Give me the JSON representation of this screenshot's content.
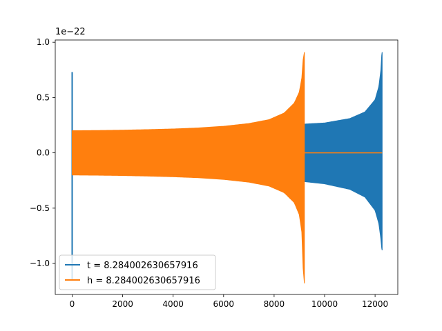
{
  "chart_data": {
    "type": "line",
    "title": "",
    "xlabel": "",
    "ylabel": "",
    "y_offset_label": "1e−22",
    "xlim": [
      -670,
      12900
    ],
    "ylim": [
      -1.28,
      1.02
    ],
    "x_ticks": [
      0,
      2000,
      4000,
      6000,
      8000,
      10000,
      12000
    ],
    "x_tick_labels": [
      "0",
      "2000",
      "4000",
      "6000",
      "8000",
      "10000",
      "12000"
    ],
    "y_ticks": [
      1.0,
      0.5,
      0.0,
      -0.5,
      -1.0
    ],
    "y_tick_labels": [
      "1.0",
      "0.5",
      "0.0",
      "−0.5",
      "−1.0"
    ],
    "grid": false,
    "legend_position": "lower-left",
    "series": [
      {
        "name": "t = 8.284002630657916",
        "color": "#1f77b4",
        "spike": {
          "x": 0,
          "max": 0.73,
          "min": -1.15
        },
        "envelope": {
          "x_start": 9200,
          "x_end": 12280,
          "upper": [
            [
              9200,
              0.26
            ],
            [
              10000,
              0.27
            ],
            [
              11000,
              0.31
            ],
            [
              11600,
              0.37
            ],
            [
              12000,
              0.48
            ],
            [
              12150,
              0.6
            ],
            [
              12230,
              0.75
            ],
            [
              12270,
              0.91
            ]
          ],
          "lower": [
            [
              9200,
              -0.26
            ],
            [
              10000,
              -0.28
            ],
            [
              11000,
              -0.33
            ],
            [
              11600,
              -0.4
            ],
            [
              12000,
              -0.52
            ],
            [
              12150,
              -0.64
            ],
            [
              12230,
              -0.78
            ],
            [
              12270,
              -0.88
            ]
          ]
        },
        "tail": {
          "x_start": 9200,
          "x_end": 12280,
          "value": 0.0
        }
      },
      {
        "name": "h = 8.284002630657916",
        "color": "#ff7f0e",
        "envelope": {
          "x_start": 0,
          "x_end": 9200,
          "upper": [
            [
              0,
              0.2
            ],
            [
              1000,
              0.202
            ],
            [
              2000,
              0.205
            ],
            [
              3000,
              0.21
            ],
            [
              4000,
              0.216
            ],
            [
              5000,
              0.225
            ],
            [
              6000,
              0.24
            ],
            [
              7000,
              0.265
            ],
            [
              7800,
              0.3
            ],
            [
              8400,
              0.36
            ],
            [
              8800,
              0.45
            ],
            [
              9000,
              0.55
            ],
            [
              9100,
              0.68
            ],
            [
              9170,
              0.91
            ]
          ],
          "lower": [
            [
              0,
              -0.2
            ],
            [
              1000,
              -0.202
            ],
            [
              2000,
              -0.205
            ],
            [
              3000,
              -0.21
            ],
            [
              4000,
              -0.216
            ],
            [
              5000,
              -0.225
            ],
            [
              6000,
              -0.24
            ],
            [
              7000,
              -0.265
            ],
            [
              7800,
              -0.3
            ],
            [
              8400,
              -0.36
            ],
            [
              8800,
              -0.45
            ],
            [
              9000,
              -0.56
            ],
            [
              9100,
              -0.72
            ],
            [
              9170,
              -1.18
            ]
          ]
        },
        "tail": {
          "x_start": 9200,
          "x_end": 12280,
          "value": 0.0
        }
      }
    ]
  }
}
